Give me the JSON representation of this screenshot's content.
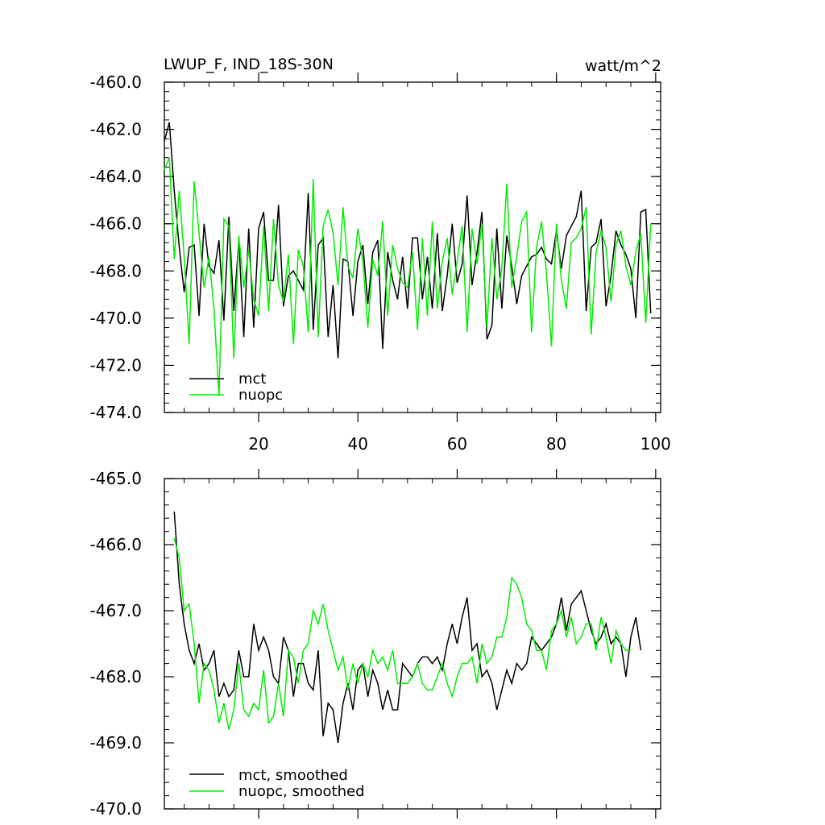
{
  "chart_data": [
    {
      "type": "line",
      "title": "LWUP_F, IND_18S-30N",
      "units": "watt/m^2",
      "xlim": [
        1,
        101
      ],
      "ylim": [
        -474,
        -460
      ],
      "x_ticks": [
        20,
        40,
        60,
        80,
        100
      ],
      "x_tick_labels": [
        "20",
        "40",
        "60",
        "80",
        "100"
      ],
      "y_ticks": [
        -460,
        -462,
        -464,
        -466,
        -468,
        -470,
        -472,
        -474
      ],
      "y_tick_labels": [
        "-460.0",
        "-462.0",
        "-464.0",
        "-466.0",
        "-468.0",
        "-470.0",
        "-472.0",
        "-474.0"
      ],
      "grid": false,
      "legend_position": "bottom-left",
      "series": [
        {
          "name": "mct",
          "color": "#000000",
          "values": [
            -462.5,
            -461.7,
            -464.6,
            -467.0,
            -468.9,
            -467.0,
            -466.9,
            -469.9,
            -466.0,
            -467.8,
            -468.1,
            -466.7,
            -470.1,
            -465.7,
            -469.7,
            -466.7,
            -470.8,
            -466.2,
            -470.4,
            -466.2,
            -465.5,
            -468.4,
            -468.4,
            -465.2,
            -469.5,
            -468.2,
            -468.0,
            -468.4,
            -468.8,
            -464.7,
            -470.5,
            -466.9,
            -466.6,
            -470.8,
            -468.6,
            -471.7,
            -467.5,
            -467.6,
            -469.9,
            -467.6,
            -466.9,
            -469.4,
            -467.2,
            -466.7,
            -471.3,
            -467.2,
            -468.4,
            -469.2,
            -467.4,
            -469.6,
            -466.6,
            -466.6,
            -469.2,
            -467.4,
            -469.6,
            -466.4,
            -469.7,
            -468.2,
            -466.0,
            -468.5,
            -467.7,
            -464.8,
            -468.6,
            -467.2,
            -465.5,
            -470.9,
            -470.3,
            -466.2,
            -469.6,
            -466.5,
            -467.8,
            -469.4,
            -468.2,
            -467.8,
            -467.4,
            -467.3,
            -467.0,
            -467.5,
            -467.7,
            -466.3,
            -467.9,
            -466.5,
            -466.1,
            -465.7,
            -464.6,
            -469.7,
            -467.0,
            -466.8,
            -465.8,
            -469.5,
            -468.2,
            -466.3,
            -466.9,
            -467.3,
            -467.9,
            -470.0,
            -465.5,
            -465.4,
            -469.8
          ]
        },
        {
          "name": "nuopc",
          "color": "#00ee00",
          "values": [
            -463.7,
            -463.2,
            -467.5,
            -464.6,
            -467.4,
            -471.1,
            -464.2,
            -466.4,
            -468.7,
            -467.4,
            -469.6,
            -473.3,
            -465.8,
            -466.1,
            -471.7,
            -466.5,
            -468.7,
            -467.1,
            -469.2,
            -469.9,
            -466.1,
            -469.7,
            -465.8,
            -468.6,
            -469.3,
            -467.3,
            -471.1,
            -467.1,
            -467.8,
            -470.6,
            -464.1,
            -470.8,
            -466.1,
            -465.4,
            -466.4,
            -468.6,
            -465.3,
            -467.8,
            -468.3,
            -466.2,
            -467.6,
            -470.4,
            -467.5,
            -468.2,
            -465.9,
            -469.9,
            -466.9,
            -467.9,
            -468.5,
            -468.7,
            -467.2,
            -470.5,
            -466.6,
            -469.9,
            -465.9,
            -469.6,
            -467.6,
            -466.6,
            -469.0,
            -467.6,
            -466.1,
            -470.6,
            -466.2,
            -467.7,
            -466.0,
            -470.4,
            -466.6,
            -469.2,
            -467.9,
            -464.3,
            -468.7,
            -467.4,
            -465.9,
            -465.5,
            -470.6,
            -467.0,
            -465.9,
            -468.1,
            -471.2,
            -466.0,
            -468.4,
            -469.6,
            -466.8,
            -466.6,
            -466.2,
            -465.3,
            -470.7,
            -467.2,
            -466.3,
            -467.0,
            -469.3,
            -466.9,
            -466.3,
            -467.8,
            -468.6,
            -467.2,
            -466.4,
            -470.2,
            -466.0
          ]
        }
      ]
    },
    {
      "type": "line",
      "xlim": [
        1,
        101
      ],
      "ylim": [
        -470,
        -465
      ],
      "x_ticks": [
        20,
        40,
        60,
        80,
        100
      ],
      "y_ticks": [
        -465,
        -466,
        -467,
        -468,
        -469,
        -470
      ],
      "y_tick_labels": [
        "-465.0",
        "-466.0",
        "-467.0",
        "-468.0",
        "-469.0",
        "-470.0"
      ],
      "grid": false,
      "legend_position": "bottom-left",
      "series": [
        {
          "name": "mct, smoothed",
          "color": "#000000",
          "values": [
            -465.5,
            -466.6,
            -467.2,
            -467.6,
            -467.8,
            -467.5,
            -467.9,
            -467.8,
            -467.6,
            -468.3,
            -468.1,
            -468.3,
            -468.2,
            -467.6,
            -468.0,
            -468.0,
            -467.2,
            -467.6,
            -467.4,
            -467.6,
            -468.0,
            -468.1,
            -467.4,
            -467.6,
            -468.3,
            -467.8,
            -467.8,
            -468.1,
            -468.2,
            -467.6,
            -468.9,
            -468.4,
            -468.5,
            -469.0,
            -468.4,
            -468.1,
            -468.5,
            -467.9,
            -467.8,
            -468.3,
            -467.9,
            -468.1,
            -468.5,
            -468.2,
            -468.5,
            -468.5,
            -467.8,
            -467.9,
            -468.0,
            -467.8,
            -467.7,
            -467.7,
            -467.8,
            -467.7,
            -467.9,
            -467.5,
            -467.2,
            -467.5,
            -467.1,
            -466.8,
            -467.6,
            -467.5,
            -468.0,
            -467.9,
            -468.1,
            -468.5,
            -468.2,
            -467.9,
            -468.1,
            -467.8,
            -467.9,
            -467.8,
            -467.4,
            -467.5,
            -467.6,
            -467.5,
            -467.4,
            -467.2,
            -466.8,
            -467.3,
            -466.9,
            -466.8,
            -466.7,
            -467.0,
            -467.3,
            -467.5,
            -467.4,
            -467.2,
            -467.5,
            -467.4,
            -467.5,
            -468.0,
            -467.4,
            -467.1,
            -467.6
          ]
        },
        {
          "name": "nuopc, smoothed",
          "color": "#00ee00",
          "values": [
            -465.9,
            -466.2,
            -467.0,
            -466.9,
            -467.5,
            -468.4,
            -467.8,
            -467.9,
            -468.2,
            -468.7,
            -468.4,
            -468.8,
            -468.5,
            -467.8,
            -468.5,
            -468.6,
            -468.4,
            -468.5,
            -467.9,
            -468.7,
            -468.6,
            -468.1,
            -468.6,
            -467.6,
            -467.7,
            -468.1,
            -467.6,
            -467.5,
            -467.0,
            -467.2,
            -466.9,
            -467.3,
            -467.6,
            -467.9,
            -467.7,
            -468.2,
            -467.8,
            -468.1,
            -467.8,
            -468.0,
            -467.6,
            -467.8,
            -467.7,
            -467.9,
            -467.6,
            -468.1,
            -468.1,
            -468.1,
            -468.0,
            -467.8,
            -468.1,
            -468.2,
            -468.2,
            -468.0,
            -467.8,
            -468.1,
            -468.3,
            -468.0,
            -467.8,
            -467.8,
            -467.7,
            -468.1,
            -467.5,
            -467.8,
            -467.7,
            -467.4,
            -467.4,
            -467.1,
            -466.5,
            -466.6,
            -466.8,
            -467.2,
            -467.3,
            -467.6,
            -467.6,
            -467.9,
            -467.3,
            -467.2,
            -467.0,
            -467.4,
            -467.1,
            -467.5,
            -467.4,
            -467.2,
            -467.2,
            -467.6,
            -467.1,
            -467.4,
            -467.8,
            -467.3,
            -467.5,
            -467.6,
            -467.6
          ]
        }
      ]
    }
  ]
}
